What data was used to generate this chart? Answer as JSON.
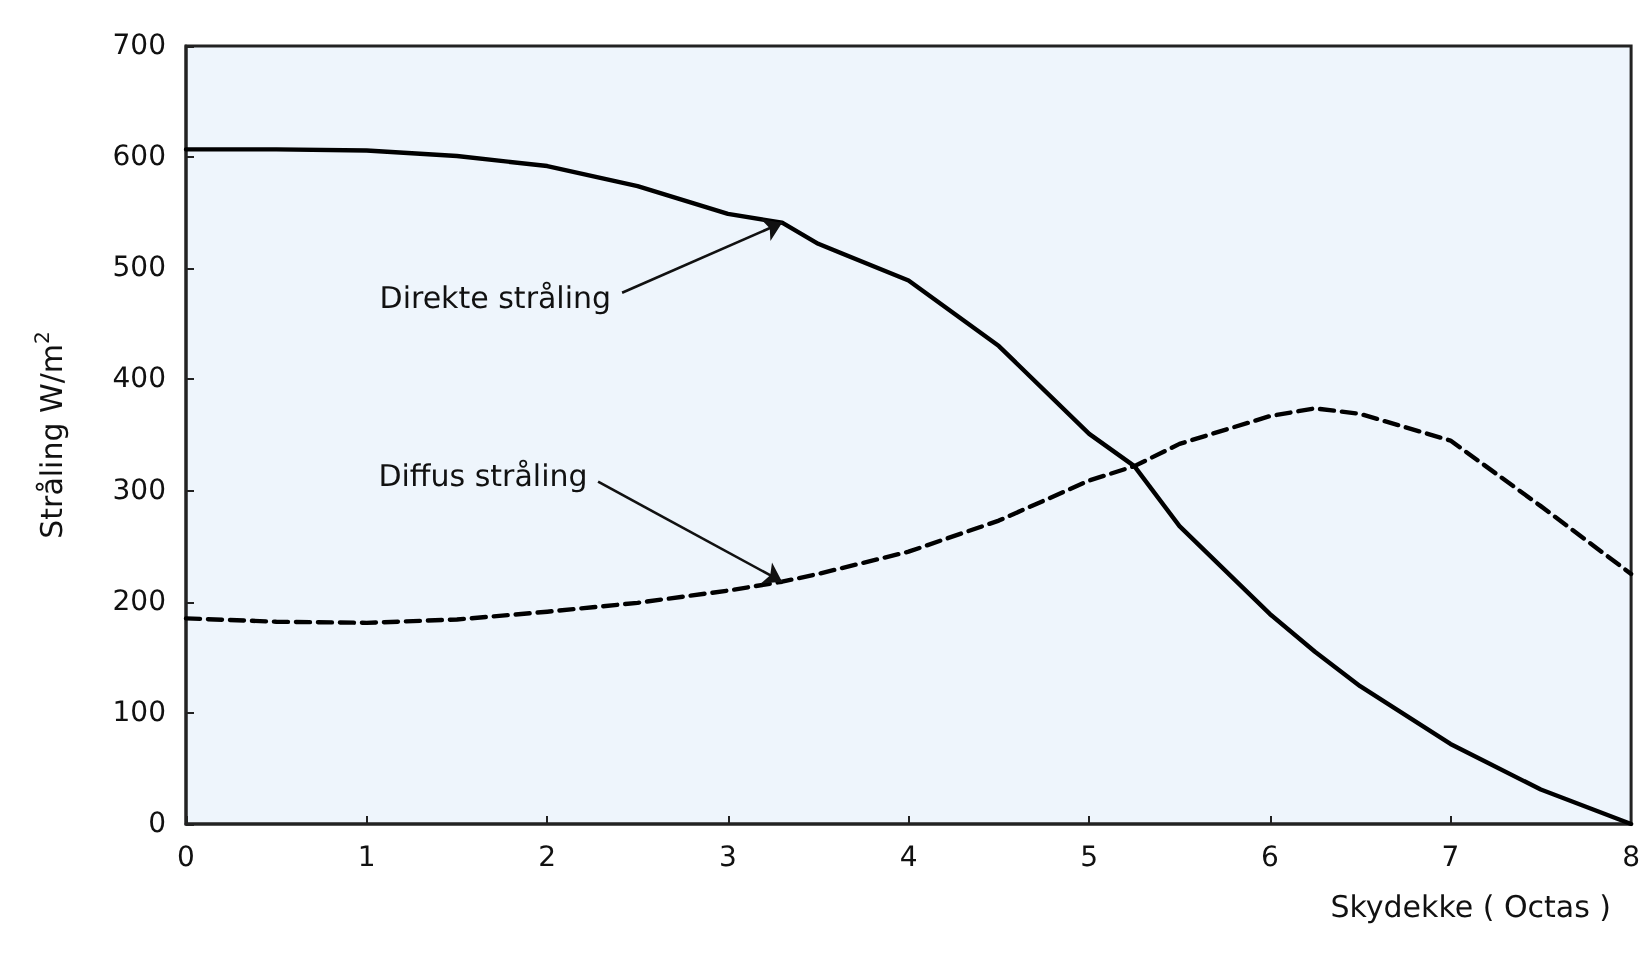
{
  "chart_data": {
    "type": "line",
    "xlabel": "Skydekke ( Octas )",
    "ylabel": "Stråling W/m$^{2}$",
    "x": [
      0,
      0.5,
      1,
      1.5,
      2,
      2.5,
      3,
      3.3,
      3.5,
      4,
      4.5,
      5,
      5.25,
      5.5,
      6,
      6.25,
      6.5,
      7,
      7.5,
      8
    ],
    "series": [
      {
        "color": "#000000",
        "line_style": "solid",
        "values": [
          607,
          607,
          606,
          601,
          592,
          574,
          549,
          541,
          522,
          489,
          430,
          351,
          322,
          268,
          189,
          155,
          124,
          72,
          31,
          0
        ]
      },
      {
        "color": "#000000",
        "line_style": "dashed",
        "values": [
          185,
          182,
          181,
          184,
          191,
          199,
          210,
          218,
          225,
          245,
          273,
          309,
          322,
          342,
          367,
          374,
          369,
          345,
          286,
          225
        ]
      }
    ],
    "xlim": [
      0,
      8
    ],
    "xticks": [
      0,
      1,
      2,
      3,
      4,
      5,
      6,
      7,
      8
    ],
    "ylim": [
      0,
      700
    ],
    "yticks": [
      0,
      100,
      200,
      300,
      400,
      500,
      600,
      700
    ],
    "grid": false,
    "marker": "none",
    "annotations": [
      {
        "text": "Direkte stråling",
        "x": 3.3,
        "y": 541
      },
      {
        "text": "Diffus stråling",
        "x": 3.3,
        "y": 218
      }
    ]
  }
}
